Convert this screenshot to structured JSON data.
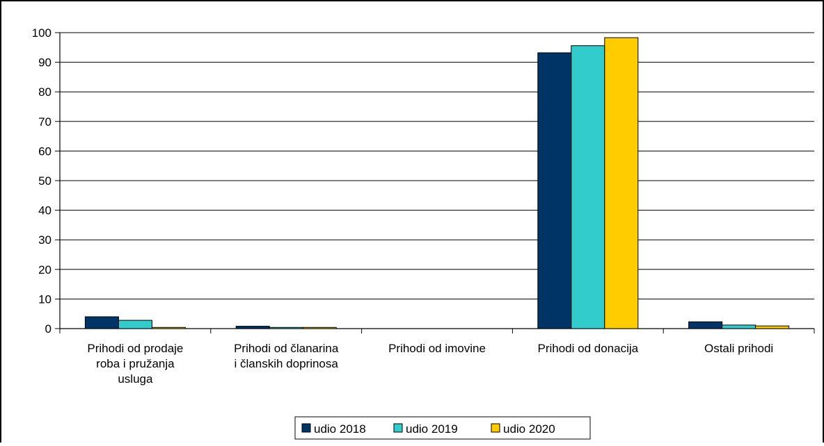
{
  "chart_data": {
    "type": "bar",
    "title": "",
    "xlabel": "",
    "ylabel": "",
    "ylim": [
      0,
      100
    ],
    "yticks": [
      0,
      10,
      20,
      30,
      40,
      50,
      60,
      70,
      80,
      90,
      100
    ],
    "grid": true,
    "legend_position": "bottom",
    "categories": [
      [
        "Prihodi od prodaje",
        "roba i pružanja",
        "usluga"
      ],
      [
        "Prihodi od članarina",
        "i članskih doprinosa"
      ],
      [
        "Prihodi od imovine"
      ],
      [
        "Prihodi od donacija"
      ],
      [
        "Ostali prihodi"
      ]
    ],
    "series": [
      {
        "name": "udio 2018",
        "color": "#003366",
        "values": [
          4.0,
          0.8,
          0.0,
          93.2,
          2.3
        ]
      },
      {
        "name": "udio 2019",
        "color": "#33CCCC",
        "values": [
          2.8,
          0.4,
          0.0,
          95.6,
          1.2
        ]
      },
      {
        "name": "udio 2020",
        "color": "#FFCC00",
        "values": [
          0.4,
          0.4,
          0.0,
          98.3,
          0.9
        ]
      }
    ]
  }
}
